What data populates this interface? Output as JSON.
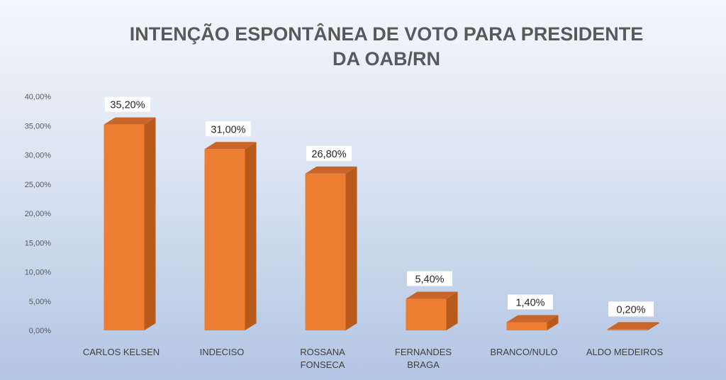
{
  "chart_data": {
    "type": "bar",
    "title_lines": [
      "INTENÇÃO ESPONTÂNEA DE VOTO PARA PRESIDENTE",
      "DA OAB/RN"
    ],
    "categories": [
      [
        "CARLOS KELSEN"
      ],
      [
        "INDECISO"
      ],
      [
        "ROSSANA",
        "FONSECA"
      ],
      [
        "FERNANDES",
        "BRAGA"
      ],
      [
        "BRANCO/NULO"
      ],
      [
        "ALDO MEDEIROS"
      ]
    ],
    "values": [
      35.2,
      31.0,
      26.8,
      5.4,
      1.4,
      0.2
    ],
    "data_labels": [
      "35,20%",
      "31,00%",
      "26,80%",
      "5,40%",
      "1,40%",
      "0,20%"
    ],
    "y_ticks": [
      0,
      5,
      10,
      15,
      20,
      25,
      30,
      35,
      40
    ],
    "y_tick_labels": [
      "0,00%",
      "5,00%",
      "10,00%",
      "15,00%",
      "20,00%",
      "25,00%",
      "30,00%",
      "35,00%",
      "40,00%"
    ],
    "ylim": [
      0,
      40
    ],
    "xlabel": "",
    "ylabel": "",
    "grid": false,
    "legend": "none",
    "colors": {
      "bar_front": "#ed7d31",
      "bar_side": "#b85a1a",
      "bar_top": "#c9652a",
      "label_box": "#ffffff"
    }
  }
}
